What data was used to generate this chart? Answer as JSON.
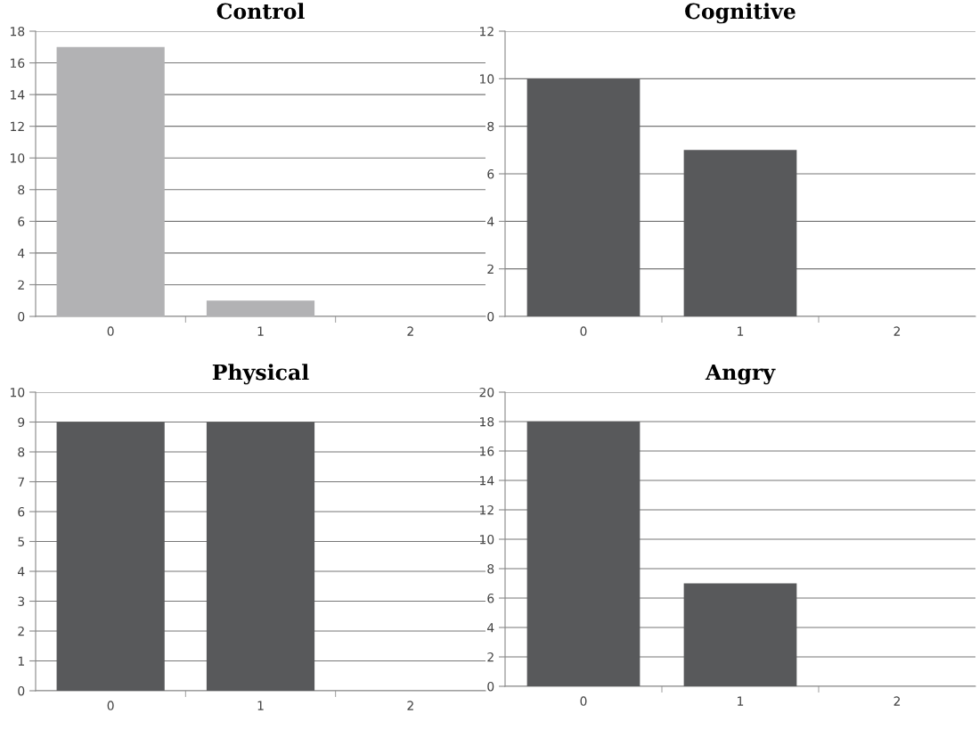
{
  "chart_data": [
    {
      "type": "bar",
      "title": "Control",
      "categories": [
        "0",
        "1",
        "2"
      ],
      "values": [
        17,
        1,
        0
      ],
      "color": "#b2b2b4",
      "ylim": [
        0,
        18
      ],
      "yticks": [
        0,
        2,
        4,
        6,
        8,
        10,
        12,
        14,
        16,
        18
      ],
      "grid": "y",
      "legend": false
    },
    {
      "type": "bar",
      "title": "Cognitive",
      "categories": [
        "0",
        "1",
        "2"
      ],
      "values": [
        10,
        7,
        0
      ],
      "color": "#58595b",
      "ylim": [
        0,
        12
      ],
      "yticks": [
        0,
        2,
        4,
        6,
        8,
        10,
        12
      ],
      "grid": "y",
      "legend": false
    },
    {
      "type": "bar",
      "title": "Physical",
      "categories": [
        "0",
        "1",
        "2"
      ],
      "values": [
        9,
        9,
        0
      ],
      "color": "#58595b",
      "ylim": [
        0,
        10
      ],
      "yticks": [
        0,
        1,
        2,
        3,
        4,
        5,
        6,
        7,
        8,
        9,
        10
      ],
      "grid": "y",
      "legend": false
    },
    {
      "type": "bar",
      "title": "Angry",
      "categories": [
        "0",
        "1",
        "2"
      ],
      "values": [
        18,
        7,
        0
      ],
      "color": "#58595b",
      "ylim": [
        0,
        20
      ],
      "yticks": [
        0,
        2,
        4,
        6,
        8,
        10,
        12,
        14,
        16,
        18,
        20
      ],
      "grid": "y",
      "legend": false
    }
  ]
}
